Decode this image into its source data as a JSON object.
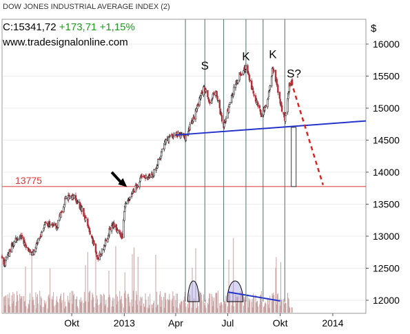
{
  "chart_data": {
    "type": "candlestick",
    "title": "DOW JONES INDUSTRIAL AVERAGE INDEX (2)",
    "quote": {
      "last": "C:15341,72",
      "change": "+173,71",
      "change_pct": "+1,15%"
    },
    "source": "www.tradesignalonline.com",
    "currency": "$",
    "y_ticks": [
      "16000",
      "15500",
      "15000",
      "14500",
      "14000",
      "13500",
      "13000",
      "12500",
      "12000"
    ],
    "y_tick_values": [
      16000,
      15500,
      15000,
      14500,
      14000,
      13500,
      13000,
      12500,
      12000
    ],
    "ylim": [
      11800,
      16350
    ],
    "x_ticks": [
      "Okt",
      "2013",
      "Apr",
      "Jul",
      "Okt",
      "2014"
    ],
    "x_tick_dates": [
      "2012-10-01",
      "2013-01-01",
      "2013-04-01",
      "2013-07-01",
      "2013-10-01",
      "2014-01-01"
    ],
    "xlim": [
      "2012-06-01",
      "2014-02-28"
    ],
    "support_level": {
      "value": 13775,
      "label": "13775"
    },
    "pattern_labels": [
      {
        "text": "S",
        "date": "2013-05-22",
        "value": 15600
      },
      {
        "text": "K",
        "date": "2013-08-02",
        "value": 15750
      },
      {
        "text": "K",
        "date": "2013-09-18",
        "value": 15780
      },
      {
        "text": "S?",
        "date": "2013-10-25",
        "value": 15480
      }
    ],
    "neckline": {
      "start": {
        "date": "2013-04-01",
        "value": 14580
      },
      "end": {
        "date": "2014-02-28",
        "value": 14800
      }
    },
    "projection": {
      "start": {
        "date": "2013-10-20",
        "value": 15420
      },
      "end": {
        "date": "2013-12-15",
        "value": 13800
      }
    },
    "markers": [
      "2013-04-18",
      "2013-05-22",
      "2013-06-24",
      "2013-08-02",
      "2013-09-01",
      "2013-10-09"
    ],
    "arrow": {
      "from": {
        "date": "2012-12-10",
        "value": 14000
      },
      "to": {
        "date": "2013-01-01",
        "value": 13800
      }
    },
    "anchors": [
      [
        "2012-06-01",
        12700
      ],
      [
        "2012-06-04",
        12550
      ],
      [
        "2012-06-20",
        12900
      ],
      [
        "2012-07-02",
        13000
      ],
      [
        "2012-07-25",
        12700
      ],
      [
        "2012-08-15",
        13200
      ],
      [
        "2012-09-05",
        13150
      ],
      [
        "2012-09-20",
        13600
      ],
      [
        "2012-10-05",
        13600
      ],
      [
        "2012-10-20",
        13400
      ],
      [
        "2012-11-01",
        13100
      ],
      [
        "2012-11-15",
        12650
      ],
      [
        "2012-11-25",
        12800
      ],
      [
        "2012-12-10",
        13200
      ],
      [
        "2012-12-28",
        13000
      ],
      [
        "2013-01-02",
        13450
      ],
      [
        "2013-01-30",
        13900
      ],
      [
        "2013-02-20",
        13950
      ],
      [
        "2013-03-05",
        14250
      ],
      [
        "2013-03-15",
        14500
      ],
      [
        "2013-04-01",
        14600
      ],
      [
        "2013-04-18",
        14550
      ],
      [
        "2013-05-01",
        14800
      ],
      [
        "2013-05-20",
        15350
      ],
      [
        "2013-05-31",
        15100
      ],
      [
        "2013-06-10",
        15250
      ],
      [
        "2013-06-24",
        14700
      ],
      [
        "2013-07-05",
        15100
      ],
      [
        "2013-07-20",
        15500
      ],
      [
        "2013-08-02",
        15650
      ],
      [
        "2013-08-15",
        15250
      ],
      [
        "2013-08-30",
        14850
      ],
      [
        "2013-09-10",
        15200
      ],
      [
        "2013-09-18",
        15650
      ],
      [
        "2013-10-01",
        15100
      ],
      [
        "2013-10-09",
        14800
      ],
      [
        "2013-10-17",
        15350
      ],
      [
        "2013-10-22",
        15400
      ]
    ],
    "volume_humps": [
      {
        "from": "2013-04-22",
        "to": "2013-05-12"
      },
      {
        "from": "2013-06-30",
        "to": "2013-07-28"
      }
    ],
    "volume_trendline": {
      "from": "2013-07-01",
      "to": "2013-10-01"
    }
  },
  "colors": {
    "up": "#222222",
    "down": "#b0303a",
    "neckline": "#2233cc",
    "support": "#dd3333",
    "projection": "#dd2222",
    "markers": "#4a7070",
    "volume": "#e8c8c8",
    "volume_edge": "#c8a0a0",
    "hump": "#9090e0",
    "grid": "#d8d8d8"
  }
}
